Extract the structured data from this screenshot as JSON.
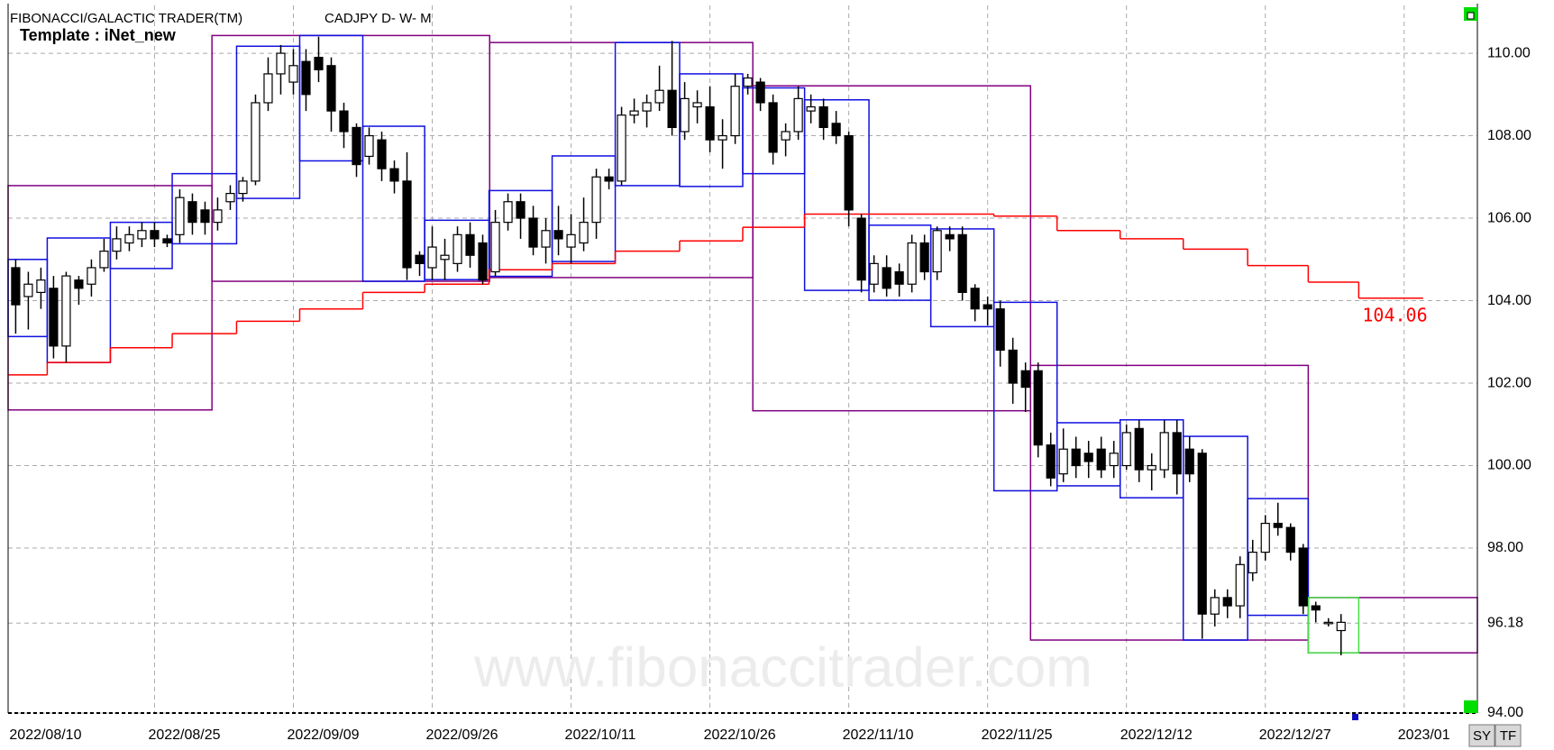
{
  "header": {
    "title": "FIBONACCI/GALACTIC TRADER(TM)",
    "symbol": "CADJPY D- W- M",
    "template": "Template : iNet_new",
    "watermark": "www.fibonaccitrader.com"
  },
  "buttons": [
    "SY",
    "TF"
  ],
  "chart_data": {
    "type": "candlestick",
    "x": [
      0,
      1,
      2,
      3,
      4,
      5,
      6,
      7,
      8,
      9,
      10,
      11,
      12,
      13,
      14,
      15,
      16,
      17,
      18,
      19,
      20,
      21,
      22,
      23,
      24,
      25,
      26,
      27,
      28,
      29,
      30,
      31,
      32,
      33,
      34,
      35,
      36,
      37,
      38,
      39,
      40,
      41,
      42,
      43,
      44,
      45,
      46,
      47,
      48,
      49,
      50,
      51,
      52,
      53,
      54,
      55,
      56,
      57,
      58,
      59,
      60,
      61,
      62,
      63,
      64,
      65,
      66,
      67,
      68,
      69,
      70,
      71,
      72,
      73,
      74,
      75,
      76,
      77,
      78,
      79,
      80,
      81,
      82,
      83,
      84,
      85,
      86,
      87,
      88,
      89,
      90,
      91,
      92,
      93,
      94,
      95,
      96,
      97,
      98,
      99,
      100,
      101,
      102,
      103,
      104,
      105
    ],
    "open": [
      104.8,
      104.1,
      104.2,
      104.3,
      102.9,
      104.5,
      104.4,
      104.8,
      105.2,
      105.4,
      105.5,
      105.7,
      105.5,
      105.6,
      106.4,
      106.2,
      105.9,
      106.4,
      106.6,
      106.9,
      108.8,
      109.5,
      109.3,
      109.8,
      109.9,
      109.7,
      108.6,
      108.2,
      107.5,
      107.9,
      107.2,
      106.9,
      105.1,
      104.8,
      105.0,
      104.9,
      105.6,
      105.4,
      104.7,
      105.9,
      106.4,
      106.0,
      105.3,
      105.7,
      105.3,
      105.4,
      105.9,
      107.0,
      106.9,
      108.5,
      108.6,
      108.8,
      109.1,
      108.1,
      108.7,
      108.7,
      107.9,
      108.0,
      109.2,
      109.3,
      108.8,
      107.9,
      108.1,
      108.6,
      108.7,
      108.3,
      108.0,
      106.0,
      104.4,
      104.8,
      104.7,
      104.4,
      105.4,
      104.7,
      105.6,
      105.6,
      104.3,
      103.9,
      103.8,
      102.8,
      102.3,
      102.3,
      100.5,
      99.8,
      100.4,
      100.3,
      100.4,
      100.0,
      100.0,
      100.9,
      99.9,
      99.9,
      100.8,
      100.4,
      100.3,
      96.4,
      96.8,
      96.6,
      97.4,
      97.9,
      98.6,
      98.5,
      98.0,
      96.6,
      96.2,
      96.0
    ],
    "high": [
      105.0,
      104.7,
      104.8,
      104.6,
      104.7,
      104.6,
      105.0,
      105.5,
      105.8,
      105.8,
      105.9,
      105.9,
      105.6,
      106.7,
      106.6,
      106.4,
      106.5,
      106.8,
      107.0,
      109.0,
      109.9,
      110.2,
      110.1,
      110.1,
      110.4,
      109.9,
      108.8,
      108.3,
      108.2,
      108.1,
      107.4,
      107.6,
      105.2,
      105.8,
      105.5,
      105.8,
      105.9,
      105.6,
      106.2,
      106.6,
      106.6,
      106.3,
      106.0,
      106.3,
      106.1,
      106.5,
      107.2,
      107.2,
      108.7,
      108.9,
      109.0,
      109.7,
      110.3,
      109.3,
      109.1,
      109.2,
      108.4,
      109.5,
      109.5,
      109.4,
      109.0,
      108.3,
      109.2,
      109.0,
      108.9,
      108.6,
      108.1,
      106.1,
      105.1,
      105.1,
      104.9,
      105.6,
      105.6,
      105.8,
      105.8,
      105.8,
      104.4,
      104.1,
      104.0,
      103.1,
      102.5,
      102.5,
      100.8,
      100.9,
      100.7,
      100.6,
      100.7,
      100.6,
      101.0,
      101.1,
      100.3,
      101.1,
      101.1,
      100.7,
      100.4,
      97.0,
      97.0,
      97.8,
      98.2,
      98.8,
      99.1,
      98.6,
      98.1,
      96.7,
      96.3,
      96.4
    ],
    "low": [
      103.2,
      103.3,
      103.8,
      102.6,
      102.5,
      103.9,
      104.1,
      104.7,
      105.0,
      105.2,
      105.3,
      105.3,
      105.3,
      105.4,
      105.6,
      105.6,
      105.7,
      106.2,
      106.4,
      106.8,
      108.6,
      109.0,
      109.0,
      108.6,
      109.3,
      108.1,
      107.7,
      107.0,
      107.3,
      106.9,
      106.6,
      104.5,
      104.6,
      104.5,
      104.5,
      104.7,
      104.8,
      104.4,
      104.6,
      105.7,
      105.5,
      105.1,
      104.9,
      105.1,
      104.9,
      105.2,
      105.5,
      106.7,
      106.8,
      108.3,
      108.2,
      108.6,
      108.0,
      107.9,
      108.3,
      107.6,
      107.2,
      107.8,
      109.0,
      108.6,
      107.3,
      107.5,
      107.9,
      108.3,
      107.9,
      107.8,
      105.8,
      104.2,
      104.2,
      104.1,
      104.1,
      104.2,
      104.5,
      104.5,
      105.2,
      104.0,
      103.5,
      103.4,
      102.4,
      101.5,
      101.3,
      100.2,
      99.5,
      99.6,
      99.7,
      99.7,
      99.7,
      99.7,
      99.9,
      99.6,
      99.4,
      99.7,
      99.3,
      99.6,
      95.8,
      96.1,
      96.3,
      96.3,
      97.2,
      97.7,
      98.3,
      97.7,
      96.4,
      96.2,
      96.1,
      95.4
    ],
    "close": [
      103.9,
      104.4,
      104.5,
      102.9,
      104.6,
      104.3,
      104.8,
      105.2,
      105.5,
      105.6,
      105.7,
      105.5,
      105.4,
      106.5,
      105.9,
      105.9,
      106.2,
      106.6,
      106.9,
      108.8,
      109.5,
      110.0,
      109.7,
      109.0,
      109.6,
      108.6,
      108.1,
      107.3,
      108.0,
      107.2,
      106.9,
      104.8,
      104.9,
      105.3,
      105.1,
      105.6,
      105.1,
      104.5,
      105.9,
      106.4,
      106.0,
      105.3,
      105.7,
      105.5,
      105.6,
      105.9,
      107.0,
      106.9,
      108.5,
      108.6,
      108.8,
      109.1,
      108.2,
      108.9,
      108.8,
      107.9,
      108.0,
      109.2,
      109.4,
      108.8,
      107.6,
      108.1,
      108.9,
      108.7,
      108.2,
      108.0,
      106.2,
      104.5,
      104.9,
      104.3,
      104.4,
      105.4,
      104.7,
      105.7,
      105.5,
      104.2,
      103.8,
      103.8,
      102.8,
      102.0,
      101.9,
      100.5,
      99.7,
      100.4,
      100.0,
      100.1,
      99.9,
      100.3,
      100.8,
      99.9,
      100.0,
      100.8,
      99.8,
      99.8,
      96.4,
      96.8,
      96.6,
      97.6,
      97.9,
      98.6,
      98.5,
      97.9,
      96.6,
      96.5,
      96.2,
      96.2
    ],
    "weekly_boxes": {
      "edges": [
        -0.6,
        2.5,
        7.5,
        12.4,
        17.5,
        22.5,
        27.5,
        32.4,
        37.5,
        42.5,
        47.5,
        52.6,
        57.6,
        62.5,
        67.6,
        72.5,
        77.5,
        82.5,
        87.5,
        92.5,
        97.6,
        102.4
      ],
      "high": [
        105.0,
        105.52,
        105.9,
        107.08,
        110.17,
        110.43,
        108.23,
        105.95,
        106.67,
        107.51,
        110.26,
        109.5,
        109.16,
        108.87,
        105.83,
        105.74,
        103.96,
        101.04,
        101.11,
        100.71,
        99.2
      ],
      "low": [
        103.13,
        102.5,
        104.78,
        105.38,
        106.48,
        107.39,
        104.47,
        104.51,
        104.59,
        104.95,
        106.79,
        106.77,
        107.08,
        104.25,
        104.01,
        103.37,
        99.39,
        99.51,
        99.22,
        95.77,
        96.37
      ]
    },
    "current_box": {
      "edges": [
        102.4,
        106.4
      ],
      "high": 96.8,
      "low": 95.46
    },
    "monthly_boxes": {
      "edges": [
        -0.6,
        15.55,
        37.55,
        58.4,
        80.4,
        102.4,
        115.8
      ],
      "high": [
        106.79,
        110.43,
        110.26,
        109.21,
        102.43,
        96.8
      ],
      "low": [
        101.35,
        104.47,
        104.56,
        101.33,
        95.77,
        95.46
      ]
    },
    "red_line": {
      "edges": [
        -0.6,
        2.5,
        7.5,
        12.4,
        17.5,
        22.5,
        27.5,
        32.4,
        37.5,
        42.5,
        47.5,
        52.6,
        57.6,
        62.5,
        67.6,
        72.5,
        77.5,
        82.5,
        87.5,
        92.5,
        97.6,
        102.4,
        106.4,
        111.5
      ],
      "values": [
        102.2,
        102.5,
        102.86,
        103.2,
        103.5,
        103.8,
        104.2,
        104.4,
        104.75,
        104.9,
        105.2,
        105.45,
        105.78,
        106.1,
        106.1,
        106.1,
        106.05,
        105.7,
        105.5,
        105.25,
        104.85,
        104.45,
        104.06
      ]
    },
    "colors": {
      "weekly": "#1010e0",
      "monthly": "#800080",
      "current": "#44dd44",
      "red_line": "#ff0000",
      "up": "#ffffff",
      "down": "#000000"
    },
    "xlim": [
      -0.6,
      115.8
    ],
    "xticks": [
      {
        "value": 0,
        "label": "2022/08/10"
      },
      {
        "value": 11,
        "label": "2022/08/25"
      },
      {
        "value": 22,
        "label": "2022/09/09"
      },
      {
        "value": 33,
        "label": "2022/09/26"
      },
      {
        "value": 44,
        "label": "2022/10/11"
      },
      {
        "value": 55,
        "label": "2022/10/26"
      },
      {
        "value": 66,
        "label": "2022/11/10"
      },
      {
        "value": 77,
        "label": "2022/11/25"
      },
      {
        "value": 88,
        "label": "2022/12/12"
      },
      {
        "value": 99,
        "label": "2022/12/27"
      },
      {
        "value": 110,
        "label": "2023/01"
      }
    ],
    "ylim": [
      94,
      111.16
    ],
    "yticks": [
      {
        "value": 94,
        "label": "94.00"
      },
      96.18,
      {
        "value": 98,
        "label": "98.00"
      },
      {
        "value": 100,
        "label": "100.00"
      },
      {
        "value": 102,
        "label": "102.00"
      },
      {
        "value": 104,
        "label": "104.00"
      },
      {
        "value": 106,
        "label": "106.00"
      },
      {
        "value": 108,
        "label": "108.00"
      },
      {
        "value": 110,
        "label": "110.00"
      }
    ],
    "grid": true
  }
}
